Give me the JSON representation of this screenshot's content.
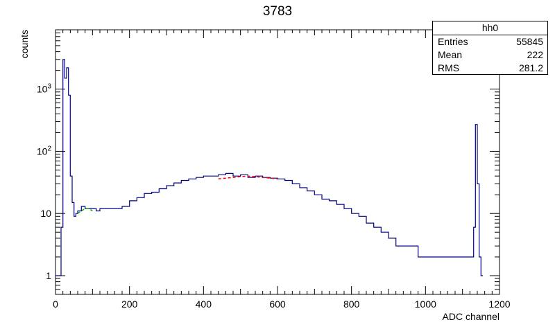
{
  "title": "3783",
  "stats": {
    "name": "hh0",
    "rows": [
      {
        "label": "Entries",
        "value": "55845"
      },
      {
        "label": "Mean",
        "value": "222"
      },
      {
        "label": "RMS",
        "value": "281.2"
      }
    ]
  },
  "chart_data": {
    "type": "line",
    "title": "3783",
    "xlabel": "ADC channel",
    "ylabel": "counts",
    "xlim": [
      0,
      1200
    ],
    "ylim": [
      0.5,
      9000
    ],
    "yscale": "log",
    "grid": false,
    "x_ticks": [
      0,
      200,
      400,
      600,
      800,
      1000,
      1200
    ],
    "x_tick_labels": [
      "0",
      "200",
      "400",
      "600",
      "800",
      "1000",
      "1200"
    ],
    "y_ticks": [
      1,
      10,
      100,
      1000
    ],
    "y_tick_labels": [
      "1",
      "10",
      "10^2",
      "10^3"
    ],
    "colors": {
      "histogram": "#000080",
      "fit_main": "#ff0000",
      "fit_low": "#00aa00"
    },
    "series": [
      {
        "style": "histogram",
        "x": [
          0,
          5,
          10,
          15,
          20,
          25,
          30,
          35,
          40,
          45,
          50,
          55,
          60,
          70,
          80,
          90,
          100,
          110,
          120,
          140,
          160,
          180,
          200,
          220,
          240,
          260,
          280,
          300,
          320,
          340,
          360,
          380,
          400,
          420,
          440,
          460,
          480,
          500,
          520,
          540,
          560,
          580,
          600,
          620,
          640,
          660,
          680,
          700,
          720,
          740,
          760,
          780,
          800,
          820,
          840,
          860,
          880,
          900,
          920,
          940,
          960,
          980,
          1000,
          1020,
          1040,
          1060,
          1080,
          1100,
          1120,
          1130,
          1135,
          1140,
          1145,
          1150
        ],
        "values": [
          1,
          1,
          1,
          6,
          3000,
          1500,
          2200,
          800,
          40,
          15,
          9,
          10,
          11,
          13,
          12,
          12,
          12,
          11,
          12,
          12,
          12,
          13,
          16,
          18,
          21,
          22,
          25,
          28,
          31,
          34,
          36,
          38,
          40,
          40,
          42,
          44,
          40,
          42,
          38,
          40,
          38,
          37,
          36,
          34,
          30,
          26,
          23,
          20,
          17,
          16,
          14,
          12,
          10,
          9,
          7,
          6,
          5,
          4,
          3,
          3,
          3,
          2,
          2,
          2,
          2,
          2,
          2,
          2,
          2,
          6,
          270,
          30,
          2,
          1
        ]
      },
      {
        "style": "fit",
        "x": [
          440,
          460,
          480,
          500,
          520,
          540,
          560,
          580,
          600
        ],
        "values": [
          36,
          37,
          38,
          39,
          40,
          39,
          38,
          37,
          36
        ]
      },
      {
        "style": "fit",
        "x": [
          60,
          70,
          80,
          90,
          100
        ],
        "values": [
          10,
          11,
          12,
          12,
          11
        ]
      }
    ]
  }
}
